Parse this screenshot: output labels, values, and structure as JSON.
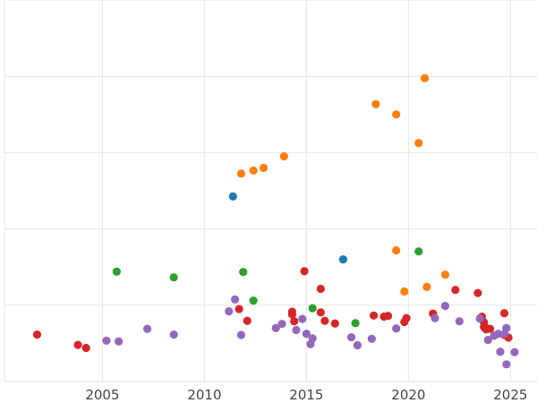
{
  "chart_data": {
    "type": "scatter",
    "title": "",
    "xlabel": "",
    "ylabel": "",
    "xlim": [
      2000.2,
      2026.3
    ],
    "ylim": [
      0,
      100
    ],
    "grid": true,
    "x_ticks": [
      2005,
      2010,
      2015,
      2020,
      2025
    ],
    "x_tick_labels": [
      "2005",
      "2010",
      "2015",
      "2020",
      "2025"
    ],
    "y_gridlines": [
      0,
      20,
      40,
      60,
      80,
      100
    ],
    "series": [
      {
        "color": "#1f77b4",
        "points": [
          [
            2011.4,
            48.5
          ],
          [
            2016.8,
            32.0
          ]
        ]
      },
      {
        "color": "#ff7f0e",
        "points": [
          [
            2011.8,
            54.5
          ],
          [
            2012.4,
            55.3
          ],
          [
            2012.9,
            56.0
          ],
          [
            2013.9,
            59.0
          ],
          [
            2018.4,
            72.7
          ],
          [
            2019.4,
            70.0
          ],
          [
            2020.5,
            62.5
          ],
          [
            2020.8,
            79.5
          ],
          [
            2019.4,
            34.4
          ],
          [
            2019.8,
            23.6
          ],
          [
            2020.9,
            24.8
          ],
          [
            2021.8,
            28.0
          ]
        ]
      },
      {
        "color": "#2ca02c",
        "points": [
          [
            2005.7,
            28.8
          ],
          [
            2008.5,
            27.3
          ],
          [
            2011.9,
            28.7
          ],
          [
            2012.4,
            21.2
          ],
          [
            2015.3,
            19.2
          ],
          [
            2017.4,
            15.3
          ],
          [
            2020.5,
            34.1
          ]
        ]
      },
      {
        "color": "#d62728",
        "points": [
          [
            2001.8,
            12.3
          ],
          [
            2003.8,
            9.6
          ],
          [
            2004.2,
            8.8
          ],
          [
            2011.7,
            19.0
          ],
          [
            2012.1,
            15.9
          ],
          [
            2014.3,
            18.3
          ],
          [
            2014.3,
            17.6
          ],
          [
            2014.4,
            15.8
          ],
          [
            2014.9,
            28.9
          ],
          [
            2015.7,
            24.3
          ],
          [
            2015.7,
            18.1
          ],
          [
            2015.9,
            15.9
          ],
          [
            2016.4,
            15.2
          ],
          [
            2018.3,
            17.3
          ],
          [
            2018.8,
            17.0
          ],
          [
            2019.0,
            17.2
          ],
          [
            2019.8,
            15.6
          ],
          [
            2019.9,
            16.6
          ],
          [
            2021.2,
            17.8
          ],
          [
            2022.3,
            24.0
          ],
          [
            2023.4,
            23.2
          ],
          [
            2023.6,
            17.0
          ],
          [
            2023.7,
            15.5
          ],
          [
            2023.7,
            14.3
          ],
          [
            2023.8,
            13.7
          ],
          [
            2023.8,
            14.0
          ],
          [
            2024.0,
            13.8
          ],
          [
            2024.7,
            17.9
          ],
          [
            2024.7,
            12.2
          ],
          [
            2024.9,
            11.5
          ]
        ]
      },
      {
        "color": "#9467bd",
        "points": [
          [
            2005.2,
            10.7
          ],
          [
            2005.8,
            10.5
          ],
          [
            2007.2,
            13.8
          ],
          [
            2008.5,
            12.3
          ],
          [
            2011.2,
            18.4
          ],
          [
            2011.5,
            21.5
          ],
          [
            2011.8,
            12.2
          ],
          [
            2013.5,
            14.0
          ],
          [
            2013.8,
            15.1
          ],
          [
            2014.5,
            13.5
          ],
          [
            2014.8,
            16.4
          ],
          [
            2015.0,
            12.5
          ],
          [
            2015.2,
            9.8
          ],
          [
            2015.3,
            11.3
          ],
          [
            2017.2,
            11.6
          ],
          [
            2017.5,
            9.5
          ],
          [
            2018.2,
            11.2
          ],
          [
            2019.4,
            13.9
          ],
          [
            2021.3,
            16.6
          ],
          [
            2021.8,
            19.8
          ],
          [
            2022.5,
            15.8
          ],
          [
            2023.5,
            16.5
          ],
          [
            2023.9,
            10.9
          ],
          [
            2024.2,
            12.0
          ],
          [
            2024.4,
            12.5
          ],
          [
            2024.5,
            7.8
          ],
          [
            2024.7,
            12.5
          ],
          [
            2024.8,
            14.0
          ],
          [
            2024.8,
            4.5
          ],
          [
            2025.2,
            7.7
          ]
        ]
      }
    ]
  }
}
